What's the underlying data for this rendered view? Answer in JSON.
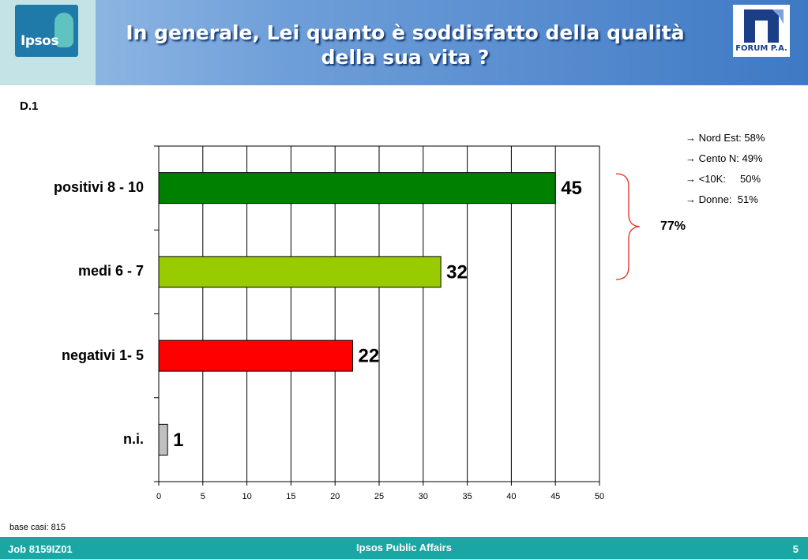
{
  "header": {
    "title_line1": "In generale, Lei quanto è soddisfatto della qualità",
    "title_line2": "della sua vita ?",
    "logo_left_text": "Ipsos",
    "logo_right_text": "FORUM P.A."
  },
  "question_code": "D.1",
  "notes": [
    "→ Nord Est: 58%",
    "→ Cento N: 49%",
    "→ <10K:     50%",
    "→ Donne:  51%"
  ],
  "bracket_total": "77%",
  "base_text": "base casi: 815",
  "footer": {
    "job": "Job 8159IZ01",
    "center": "Ipsos Public Affairs",
    "page": "5"
  },
  "colors": {
    "header_start": "#9cc0e6",
    "header_end": "#3f79c4",
    "footer": "#1aa7a3",
    "bracket": "#e03020"
  },
  "chart_data": {
    "type": "bar",
    "orientation": "horizontal",
    "categories": [
      "positivi 8 - 10",
      "medi 6 - 7",
      "negativi 1- 5",
      "n.i."
    ],
    "values": [
      45,
      32,
      22,
      1
    ],
    "bar_colors": [
      "#008000",
      "#99cc00",
      "#ff0000",
      "#c0c0c0"
    ],
    "xlim": [
      0,
      50
    ],
    "xticks": [
      0,
      5,
      10,
      15,
      20,
      25,
      30,
      35,
      40,
      45,
      50
    ],
    "grid": true,
    "title": "",
    "xlabel": "",
    "ylabel": ""
  }
}
